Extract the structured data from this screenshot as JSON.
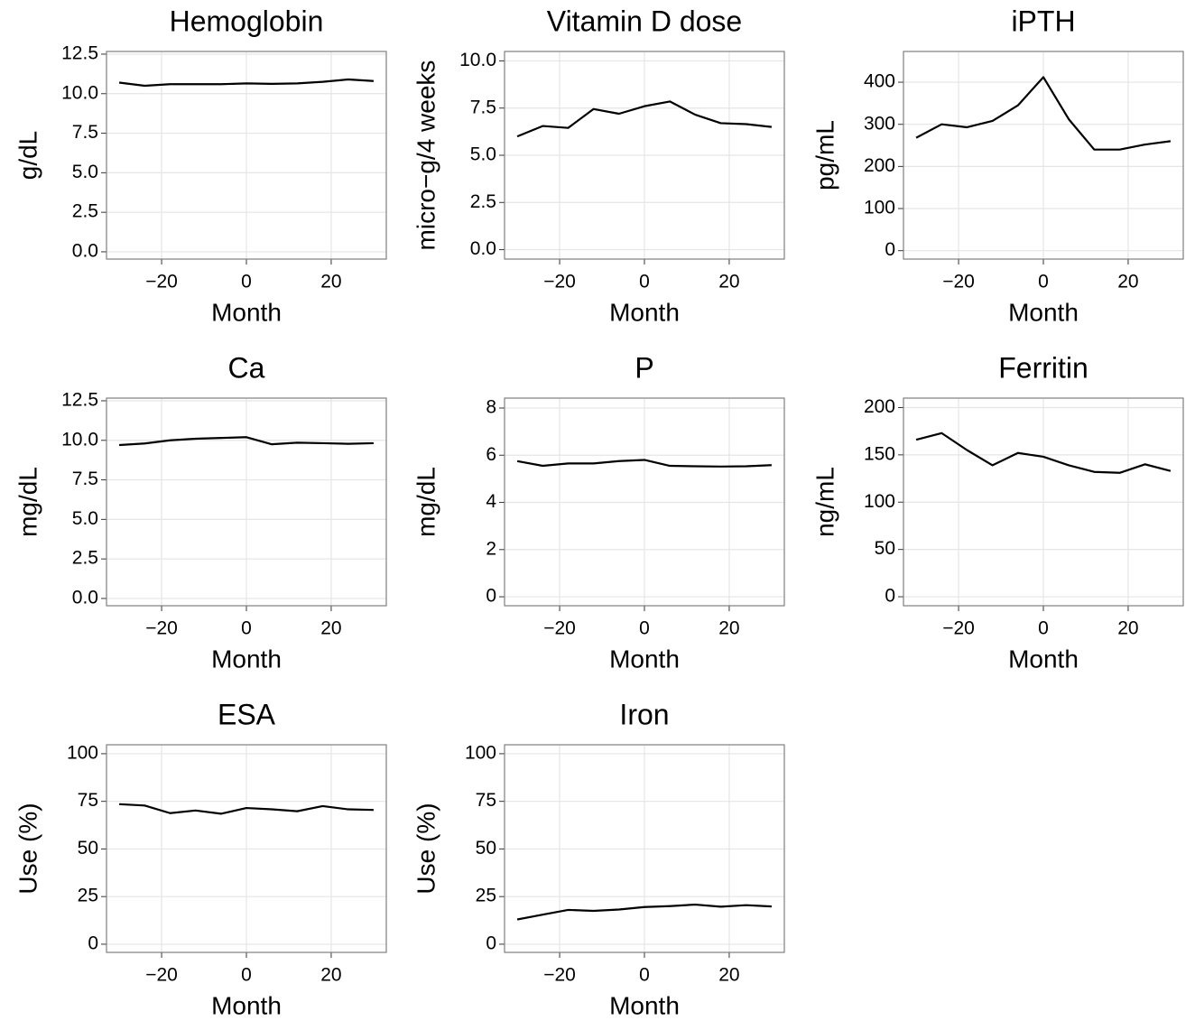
{
  "chart_data": [
    {
      "type": "line",
      "title": "Hemoglobin",
      "x_label": "Month",
      "y_label": "g/dL",
      "color": "#000000",
      "x": [
        -30,
        -24,
        -18,
        -12,
        -6,
        0,
        6,
        12,
        18,
        24,
        30
      ],
      "values": [
        10.7,
        10.5,
        10.6,
        10.6,
        10.6,
        10.65,
        10.62,
        10.65,
        10.75,
        10.9,
        10.8
      ],
      "xlim": [
        -33,
        33
      ],
      "xticks": [
        {
          "value": -20,
          "label": "−20"
        },
        0,
        20
      ],
      "ylim": [
        -0.46,
        12.67
      ],
      "yticks": [
        {
          "value": 0,
          "label": "0.0"
        },
        2.5,
        {
          "value": 5,
          "label": "5.0"
        },
        7.5,
        {
          "value": 10,
          "label": "10.0"
        },
        12.5
      ],
      "grid": true
    },
    {
      "type": "line",
      "title": "Vitamin D dose",
      "x_label": "Month",
      "y_label": "micro−g/4 weeks",
      "color": "#000000",
      "x": [
        -30,
        -24,
        -18,
        -12,
        -6,
        0,
        6,
        12,
        18,
        24,
        30
      ],
      "values": [
        6.0,
        6.55,
        6.45,
        7.45,
        7.2,
        7.6,
        7.85,
        7.15,
        6.7,
        6.65,
        6.5
      ],
      "xlim": [
        -33,
        33
      ],
      "xticks": [
        {
          "value": -20,
          "label": "−20"
        },
        0,
        20
      ],
      "ylim": [
        -0.5,
        10.5
      ],
      "yticks": [
        {
          "value": 0,
          "label": "0.0"
        },
        2.5,
        {
          "value": 5,
          "label": "5.0"
        },
        7.5,
        {
          "value": 10,
          "label": "10.0"
        }
      ],
      "grid": true
    },
    {
      "type": "line",
      "title": "iPTH",
      "x_label": "Month",
      "y_label": "pg/mL",
      "color": "#000000",
      "x": [
        -30,
        -24,
        -18,
        -12,
        -6,
        0,
        6,
        12,
        18,
        24,
        30
      ],
      "values": [
        268,
        300,
        293,
        308,
        345,
        412,
        312,
        240,
        240,
        252,
        260
      ],
      "xlim": [
        -33,
        33
      ],
      "xticks": [
        {
          "value": -20,
          "label": "−20"
        },
        0,
        20
      ],
      "ylim": [
        -20,
        473
      ],
      "yticks": [
        0,
        100,
        200,
        300,
        400
      ],
      "grid": true
    },
    {
      "type": "line",
      "title": "Ca",
      "x_label": "Month",
      "y_label": "mg/dL",
      "color": "#000000",
      "x": [
        -30,
        -24,
        -18,
        -12,
        -6,
        0,
        6,
        12,
        18,
        24,
        30
      ],
      "values": [
        9.7,
        9.8,
        10.0,
        10.1,
        10.15,
        10.2,
        9.75,
        9.85,
        9.82,
        9.78,
        9.82
      ],
      "xlim": [
        -33,
        33
      ],
      "xticks": [
        {
          "value": -20,
          "label": "−20"
        },
        0,
        20
      ],
      "ylim": [
        -0.46,
        12.67
      ],
      "yticks": [
        {
          "value": 0,
          "label": "0.0"
        },
        2.5,
        {
          "value": 5,
          "label": "5.0"
        },
        7.5,
        {
          "value": 10,
          "label": "10.0"
        },
        12.5
      ],
      "grid": true
    },
    {
      "type": "line",
      "title": "P",
      "x_label": "Month",
      "y_label": "mg/dL",
      "color": "#000000",
      "x": [
        -30,
        -24,
        -18,
        -12,
        -6,
        0,
        6,
        12,
        18,
        24,
        30
      ],
      "values": [
        5.75,
        5.55,
        5.65,
        5.65,
        5.75,
        5.8,
        5.55,
        5.53,
        5.52,
        5.53,
        5.58
      ],
      "xlim": [
        -33,
        33
      ],
      "xticks": [
        {
          "value": -20,
          "label": "−20"
        },
        0,
        20
      ],
      "ylim": [
        -0.38,
        8.42
      ],
      "yticks": [
        0,
        2,
        4,
        6,
        8
      ],
      "grid": true
    },
    {
      "type": "line",
      "title": "Ferritin",
      "x_label": "Month",
      "y_label": "ng/mL",
      "color": "#000000",
      "x": [
        -30,
        -24,
        -18,
        -12,
        -6,
        0,
        6,
        12,
        18,
        24,
        30
      ],
      "values": [
        166,
        173,
        155,
        139,
        152,
        148,
        139,
        132,
        131,
        140,
        133
      ],
      "xlim": [
        -33,
        33
      ],
      "xticks": [
        {
          "value": -20,
          "label": "−20"
        },
        0,
        20
      ],
      "ylim": [
        -9.5,
        210
      ],
      "yticks": [
        0,
        50,
        100,
        150,
        200
      ],
      "grid": true
    },
    {
      "type": "line",
      "title": "ESA",
      "x_label": "Month",
      "y_label": "Use (%)",
      "color": "#000000",
      "x": [
        -30,
        -24,
        -18,
        -12,
        -6,
        0,
        6,
        12,
        18,
        24,
        30
      ],
      "values": [
        73.5,
        72.8,
        68.8,
        70.2,
        68.5,
        71.5,
        70.8,
        69.8,
        72.5,
        70.8,
        70.5
      ],
      "xlim": [
        -33,
        33
      ],
      "xticks": [
        {
          "value": -20,
          "label": "−20"
        },
        0,
        20
      ],
      "ylim": [
        -4.3,
        104.7
      ],
      "yticks": [
        0,
        25,
        50,
        75,
        100
      ],
      "grid": true
    },
    {
      "type": "line",
      "title": "Iron",
      "x_label": "Month",
      "y_label": "Use (%)",
      "color": "#000000",
      "x": [
        -30,
        -24,
        -18,
        -12,
        -6,
        0,
        6,
        12,
        18,
        24,
        30
      ],
      "values": [
        13,
        15.5,
        18,
        17.5,
        18.2,
        19.5,
        20,
        20.8,
        19.7,
        20.5,
        19.8
      ],
      "xlim": [
        -33,
        33
      ],
      "xticks": [
        {
          "value": -20,
          "label": "−20"
        },
        0,
        20
      ],
      "ylim": [
        -4.3,
        104.7
      ],
      "yticks": [
        0,
        25,
        50,
        75,
        100
      ],
      "grid": true
    }
  ]
}
